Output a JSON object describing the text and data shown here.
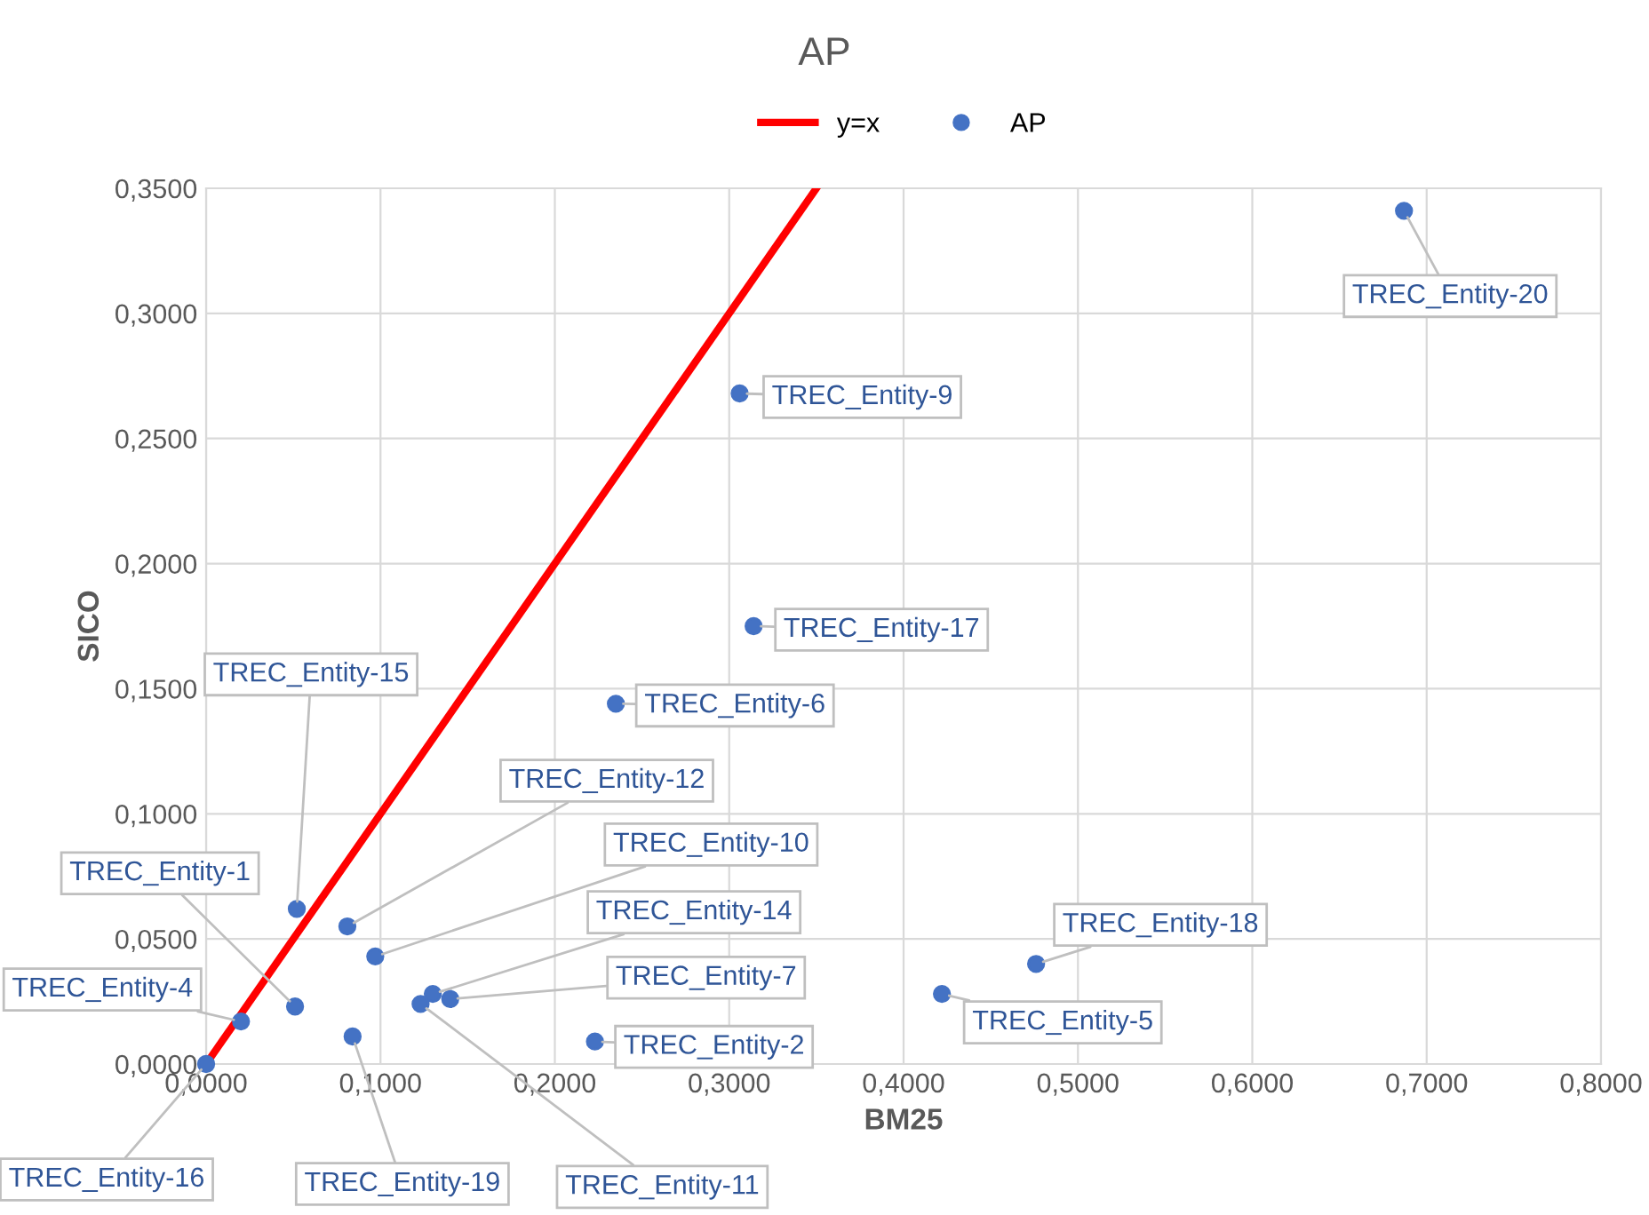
{
  "chart_data": {
    "type": "scatter",
    "title": "AP",
    "xlabel": "BM25",
    "ylabel": "SICO",
    "xlim": [
      0,
      0.8
    ],
    "ylim": [
      0,
      0.35
    ],
    "xticks": [
      {
        "value": 0,
        "label": "0,0000"
      },
      {
        "value": 0.1,
        "label": "0,1000"
      },
      {
        "value": 0.2,
        "label": "0,2000"
      },
      {
        "value": 0.3,
        "label": "0,3000"
      },
      {
        "value": 0.4,
        "label": "0,4000"
      },
      {
        "value": 0.5,
        "label": "0,5000"
      },
      {
        "value": 0.6,
        "label": "0,6000"
      },
      {
        "value": 0.7,
        "label": "0,7000"
      },
      {
        "value": 0.8,
        "label": "0,8000"
      }
    ],
    "yticks": [
      {
        "value": 0,
        "label": "0,0000"
      },
      {
        "value": 0.05,
        "label": "0,0500"
      },
      {
        "value": 0.1,
        "label": "0,1000"
      },
      {
        "value": 0.15,
        "label": "0,1500"
      },
      {
        "value": 0.2,
        "label": "0,2000"
      },
      {
        "value": 0.25,
        "label": "0,2500"
      },
      {
        "value": 0.3,
        "label": "0,3000"
      },
      {
        "value": 0.35,
        "label": "0,3500"
      }
    ],
    "grid": true,
    "legend": "top",
    "series": [
      {
        "name": "y=x",
        "type": "line",
        "color": "#ff0000",
        "x": [
          0,
          0.35
        ],
        "values": [
          0,
          0.35
        ]
      },
      {
        "name": "AP",
        "marker": "circle",
        "color": "#4472c4",
        "x": [
          0.687,
          0.306,
          0.314,
          0.235,
          0.052,
          0.081,
          0.097,
          0.051,
          0.02,
          0.0,
          0.084,
          0.13,
          0.14,
          0.123,
          0.223,
          0.422,
          0.476
        ],
        "values": [
          0.341,
          0.268,
          0.175,
          0.144,
          0.062,
          0.055,
          0.043,
          0.023,
          0.017,
          0.0,
          0.011,
          0.028,
          0.026,
          0.024,
          0.009,
          0.028,
          0.04
        ]
      }
    ],
    "annotations": [
      {
        "text": "TREC_Entity-20",
        "x": 0.687,
        "y": 0.341
      },
      {
        "text": "TREC_Entity-9",
        "x": 0.306,
        "y": 0.268
      },
      {
        "text": "TREC_Entity-17",
        "x": 0.314,
        "y": 0.175
      },
      {
        "text": "TREC_Entity-6",
        "x": 0.235,
        "y": 0.144
      },
      {
        "text": "TREC_Entity-15",
        "x": 0.052,
        "y": 0.062
      },
      {
        "text": "TREC_Entity-12",
        "x": 0.081,
        "y": 0.055
      },
      {
        "text": "TREC_Entity-10",
        "x": 0.097,
        "y": 0.043
      },
      {
        "text": "TREC_Entity-1",
        "x": 0.051,
        "y": 0.023
      },
      {
        "text": "TREC_Entity-4",
        "x": 0.02,
        "y": 0.017
      },
      {
        "text": "TREC_Entity-16",
        "x": 0.0,
        "y": 0.0
      },
      {
        "text": "TREC_Entity-19",
        "x": 0.084,
        "y": 0.011
      },
      {
        "text": "TREC_Entity-14",
        "x": 0.13,
        "y": 0.028
      },
      {
        "text": "TREC_Entity-7",
        "x": 0.14,
        "y": 0.026
      },
      {
        "text": "TREC_Entity-11",
        "x": 0.123,
        "y": 0.024
      },
      {
        "text": "TREC_Entity-2",
        "x": 0.223,
        "y": 0.009
      },
      {
        "text": "TREC_Entity-5",
        "x": 0.422,
        "y": 0.028
      },
      {
        "text": "TREC_Entity-18",
        "x": 0.476,
        "y": 0.04
      }
    ]
  }
}
